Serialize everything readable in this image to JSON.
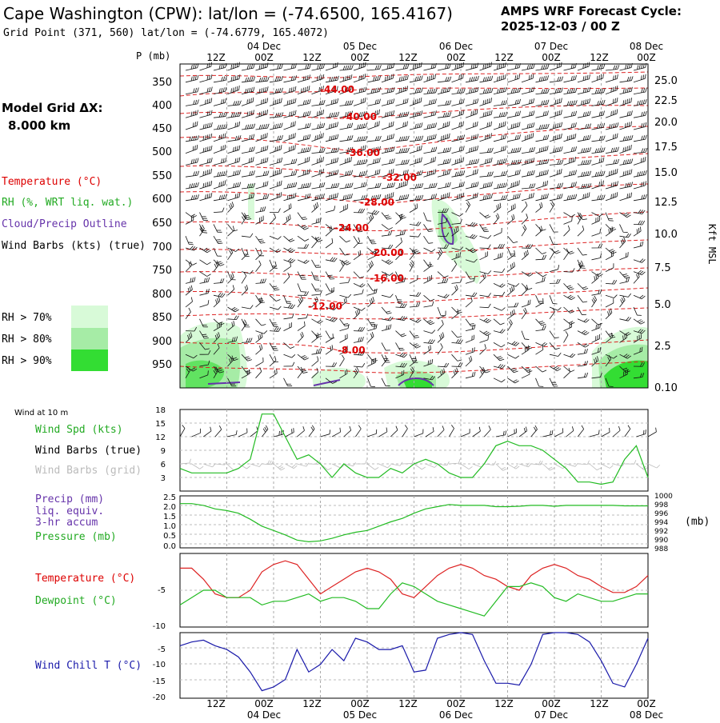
{
  "header": {
    "title": "Cape Washington (CPW):  lat/lon = (-74.6500, 165.4167)",
    "cycle_label": "AMPS WRF Forecast Cycle:",
    "cycle_value": "2025-12-03 / 00  Z",
    "grid_point": "Grid Point (371, 560) lat/lon = (-74.6779, 165.4072)"
  },
  "time_axis": {
    "hour_labels": [
      "12Z",
      "00Z",
      "12Z",
      "00Z",
      "12Z",
      "00Z",
      "12Z",
      "00Z",
      "12Z",
      "00Z"
    ],
    "day_labels": [
      "04 Dec",
      "05 Dec",
      "06 Dec",
      "07 Dec",
      "08 Dec"
    ]
  },
  "left_legend": {
    "grid_title": "Model Grid ΔX:",
    "grid_value": "8.000 km",
    "temperature": "Temperature (°C)",
    "rh": "RH (%, WRT liq. wat.)",
    "cloud": "Cloud/Precip Outline",
    "wind": "Wind Barbs (kts) (true)",
    "rh70": "RH > 70%",
    "rh80": "RH > 80%",
    "rh90": "RH > 90%",
    "colors": {
      "rh70": "#d8fad8",
      "rh80": "#a6eca6",
      "rh90": "#33dd33",
      "temp": "#dd0000",
      "cloud": "#6633aa"
    }
  },
  "cross_section": {
    "p_label": "P (mb)",
    "right_label": "Kft MSL",
    "pressure_ticks": [
      "350",
      "400",
      "450",
      "500",
      "550",
      "600",
      "650",
      "700",
      "750",
      "800",
      "850",
      "900",
      "950"
    ],
    "height_ticks": [
      "25.0",
      "22.5",
      "20.0",
      "17.5",
      "15.0",
      "12.5",
      "10.0",
      "7.5",
      "5.0",
      "2.5",
      "0.10"
    ],
    "temp_contour_labels": [
      "-44.00",
      "-40.00",
      "-36.00",
      "-32.00",
      "-28.00",
      "-24.00",
      "-20.00",
      "-16.00",
      "-12.00",
      "-8.00"
    ]
  },
  "panel_wind": {
    "title": "Wind at 10 m",
    "spd": "Wind Spd (kts)",
    "barbs_true": "Wind Barbs (true)",
    "barbs_grid": "Wind Barbs (grid)",
    "ticks": [
      "18",
      "15",
      "12",
      "9",
      "6",
      "3"
    ]
  },
  "panel_precip": {
    "l1": "Precip (mm)",
    "l2": "liq. equiv.",
    "l3": "3-hr accum",
    "l4": "Pressure (mb)",
    "left_ticks": [
      "2.5",
      "2.0",
      "1.5",
      "1.0",
      "0.5",
      "0.0"
    ],
    "right_ticks": [
      "1000",
      "998",
      "996",
      "994",
      "992",
      "990",
      "988"
    ],
    "unit": "(mb)"
  },
  "panel_temp": {
    "temp": "Temperature (°C)",
    "dew": "Dewpoint (°C)",
    "ticks": [
      "-5",
      "-10"
    ]
  },
  "panel_chill": {
    "label": "Wind Chill T (°C)",
    "ticks": [
      "-5",
      "-10",
      "-15",
      "-20"
    ]
  },
  "chart_data": {
    "type": "line",
    "x_hours": [
      0,
      3,
      6,
      9,
      12,
      15,
      18,
      21,
      24,
      27,
      30,
      33,
      36,
      39,
      42,
      45,
      48,
      51,
      54,
      57,
      60,
      63,
      66,
      69,
      72,
      75,
      78,
      81,
      84,
      87,
      90,
      93,
      96,
      99,
      102,
      105,
      108,
      111,
      114,
      117,
      120
    ],
    "series": [
      {
        "name": "Wind Spd (kts)",
        "panel": "wind",
        "color": "#22bb22",
        "ylim": [
          0,
          18
        ],
        "values": [
          5,
          4,
          4,
          4,
          4,
          5,
          7,
          17,
          17,
          12,
          7,
          8,
          6,
          3,
          6,
          4,
          3,
          3,
          5,
          4,
          6,
          7,
          6,
          4,
          3,
          3,
          6,
          10,
          11,
          10,
          10,
          9,
          7,
          5,
          2,
          2,
          1.5,
          2,
          7,
          10,
          3
        ]
      },
      {
        "name": "Pressure (mb)",
        "panel": "precip",
        "color": "#22bb22",
        "ylim": [
          988,
          1000
        ],
        "values": [
          998.2,
          998.2,
          997.8,
          997,
          996.6,
          996,
          994.6,
          993,
          992,
          991,
          989.8,
          989.4,
          989.6,
          990.2,
          991,
          991.6,
          992,
          993,
          994,
          994.8,
          996,
          997,
          997.5,
          998,
          997.8,
          997.8,
          997.8,
          997.5,
          997.5,
          997.6,
          997.8,
          997.8,
          997.6,
          997.8,
          997.8,
          997.8,
          997.8,
          997.8,
          997.7,
          997.7,
          997.7
        ]
      },
      {
        "name": "Temperature (°C)",
        "panel": "temp",
        "color": "#dd2222",
        "ylim": [
          -10.5,
          -0.5
        ],
        "values": [
          -2.5,
          -2.5,
          -4,
          -6,
          -6.5,
          -6.5,
          -5.5,
          -3,
          -2,
          -1.5,
          -2,
          -4,
          -6,
          -5,
          -4,
          -3,
          -2.5,
          -3,
          -4,
          -6,
          -6.5,
          -5,
          -3.5,
          -2.5,
          -2,
          -2.5,
          -3.5,
          -4,
          -5,
          -5.5,
          -3.5,
          -2.5,
          -2,
          -2.5,
          -3.5,
          -4,
          -5,
          -5.8,
          -5.8,
          -5,
          -3.5
        ]
      },
      {
        "name": "Dewpoint (°C)",
        "panel": "temp",
        "color": "#22bb22",
        "ylim": [
          -10.5,
          -0.5
        ],
        "values": [
          -7.5,
          -6.5,
          -5.5,
          -5.5,
          -6.5,
          -6.5,
          -6.5,
          -7.5,
          -7,
          -7,
          -6.5,
          -6,
          -7,
          -6.5,
          -6.5,
          -7,
          -8,
          -8,
          -6,
          -4.5,
          -5,
          -6,
          -7,
          -7.5,
          -8,
          -8.5,
          -9,
          -7,
          -5,
          -5,
          -4.5,
          -5,
          -6.5,
          -7,
          -6,
          -6.5,
          -7,
          -7,
          -6.5,
          -6,
          -6
        ]
      },
      {
        "name": "Wind Chill T (°C)",
        "panel": "chill",
        "color": "#1a1aaa",
        "ylim": [
          -20,
          -2.5
        ],
        "values": [
          -6,
          -5,
          -4.5,
          -6,
          -7,
          -9,
          -13,
          -18,
          -17,
          -15,
          -7,
          -13,
          -11,
          -7,
          -10,
          -4,
          -5,
          -7,
          -7,
          -6,
          -13,
          -12.5,
          -4,
          -3,
          -2.5,
          -3,
          -10,
          -16,
          -16,
          -16.5,
          -11,
          -3,
          -2.5,
          -2.5,
          -3,
          -5,
          -10,
          -16,
          -17,
          -11,
          -4
        ]
      }
    ]
  }
}
